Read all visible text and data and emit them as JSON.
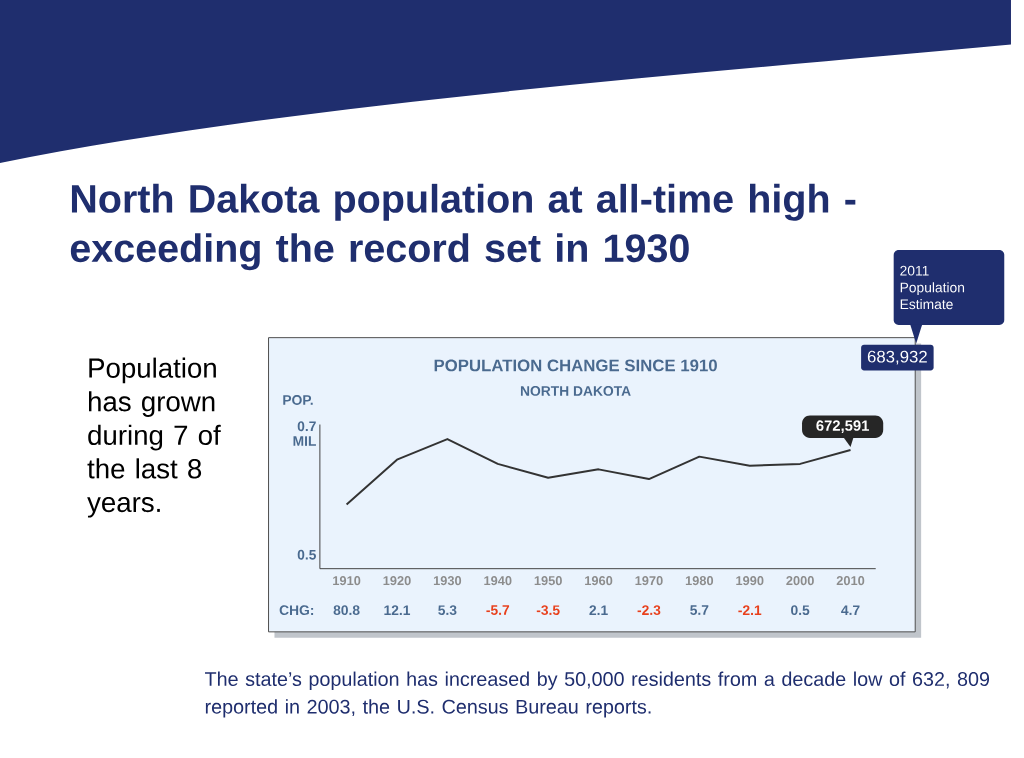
{
  "chart_data": {
    "type": "line",
    "title": "POPULATION CHANGE SINCE 1910",
    "subtitle": "NORTH DAKOTA",
    "ylabel": "POP.",
    "categories": [
      "1910",
      "1920",
      "1930",
      "1940",
      "1950",
      "1960",
      "1970",
      "1980",
      "1990",
      "2000",
      "2010"
    ],
    "series": [
      {
        "color": "#333333",
        "values": [
          0.583,
          0.657,
          0.691,
          0.65,
          0.627,
          0.641,
          0.625,
          0.662,
          0.647,
          0.65,
          0.673
        ]
      }
    ],
    "ylim": [
      0.477,
      0.715
    ],
    "yticks": [
      0.5,
      {
        "value": 0.7,
        "label": "0.7 MIL"
      }
    ],
    "marker": "none",
    "annotations": [
      "North Dakota population at all-time high  -  exceeding the record set in 1930",
      "Population has grown during 7 of the last 8 years.",
      "2011 Population Estimate",
      "683,932",
      {
        "text": "672,591",
        "x": "2010",
        "y": 0.673
      },
      "CHG:",
      "80.8",
      "12.1",
      "5.3",
      "-5.7",
      "-3.5",
      "2.1",
      "-2.3",
      "5.7",
      "-2.1",
      "0.5",
      "4.7",
      "The state’s population has increased by 50,000 residents from a decade low of 632, 809 reported in 2003, the U.S. Census Bureau reports."
    ]
  }
}
